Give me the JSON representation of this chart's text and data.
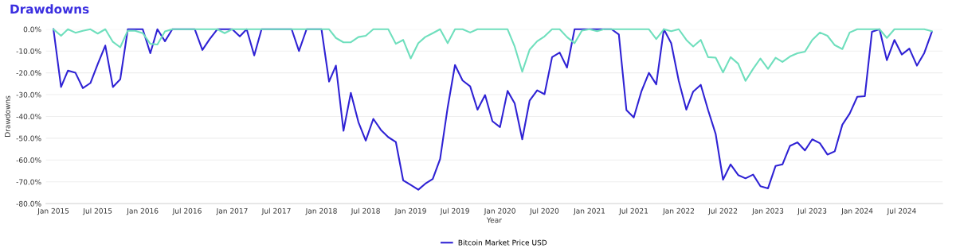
{
  "chart_data": {
    "type": "line",
    "title": "Drawdowns",
    "xlabel": "Year",
    "ylabel": "Drawdowns",
    "x": [
      "2015-01",
      "2015-02",
      "2015-03",
      "2015-04",
      "2015-05",
      "2015-06",
      "2015-07",
      "2015-08",
      "2015-09",
      "2015-10",
      "2015-11",
      "2015-12",
      "2016-01",
      "2016-02",
      "2016-03",
      "2016-04",
      "2016-05",
      "2016-06",
      "2016-07",
      "2016-08",
      "2016-09",
      "2016-10",
      "2016-11",
      "2016-12",
      "2017-01",
      "2017-02",
      "2017-03",
      "2017-04",
      "2017-05",
      "2017-06",
      "2017-07",
      "2017-08",
      "2017-09",
      "2017-10",
      "2017-11",
      "2017-12",
      "2018-01",
      "2018-02",
      "2018-03",
      "2018-04",
      "2018-05",
      "2018-06",
      "2018-07",
      "2018-08",
      "2018-09",
      "2018-10",
      "2018-11",
      "2018-12",
      "2019-01",
      "2019-02",
      "2019-03",
      "2019-04",
      "2019-05",
      "2019-06",
      "2019-07",
      "2019-08",
      "2019-09",
      "2019-10",
      "2019-11",
      "2019-12",
      "2020-01",
      "2020-02",
      "2020-03",
      "2020-04",
      "2020-05",
      "2020-06",
      "2020-07",
      "2020-08",
      "2020-09",
      "2020-10",
      "2020-11",
      "2020-12",
      "2021-01",
      "2021-02",
      "2021-03",
      "2021-04",
      "2021-05",
      "2021-06",
      "2021-07",
      "2021-08",
      "2021-09",
      "2021-10",
      "2021-11",
      "2021-12",
      "2022-01",
      "2022-02",
      "2022-03",
      "2022-04",
      "2022-05",
      "2022-06",
      "2022-07",
      "2022-08",
      "2022-09",
      "2022-10",
      "2022-11",
      "2022-12",
      "2023-01",
      "2023-02",
      "2023-03",
      "2023-04",
      "2023-05",
      "2023-06",
      "2023-07",
      "2023-08",
      "2023-09",
      "2023-10",
      "2023-11",
      "2023-12",
      "2024-01",
      "2024-02",
      "2024-03",
      "2024-04",
      "2024-05",
      "2024-06",
      "2024-07",
      "2024-08",
      "2024-09",
      "2024-10",
      "2024-11"
    ],
    "series": [
      {
        "name": "Bitcoin Market Price USD",
        "color": "#2f22d4",
        "values": [
          0,
          -26.5,
          -19,
          -20,
          -27,
          -24.7,
          -16,
          -7.5,
          -26.5,
          -23,
          0,
          0,
          0,
          -11,
          0,
          -5.5,
          0,
          0,
          0,
          0,
          -9.5,
          -4.5,
          0,
          0,
          0,
          -3.3,
          0,
          -12,
          0,
          0,
          0,
          0,
          0,
          -10,
          0,
          0,
          0,
          -24,
          -16.7,
          -46.6,
          -29.2,
          -42.6,
          -51.1,
          -41.1,
          -46.2,
          -49.5,
          -51.7,
          -69.3,
          -71.4,
          -73.6,
          -70.9,
          -68.7,
          -59.6,
          -35.9,
          -16.4,
          -23.5,
          -26.2,
          -36.9,
          -30.2,
          -42.2,
          -44.9,
          -28.3,
          -34,
          -50.5,
          -32.8,
          -28,
          -29.8,
          -12.8,
          -10.7,
          -17.6,
          0,
          0,
          0,
          0,
          0,
          0,
          -2.4,
          -37.1,
          -40.5,
          -28.6,
          -20,
          -25.3,
          0,
          -6.4,
          -23.7,
          -36.9,
          -28.6,
          -25.5,
          -37.1,
          -48.1,
          -69,
          -62,
          -66.9,
          -68.4,
          -66.7,
          -72,
          -73,
          -62.7,
          -62,
          -53.5,
          -51.9,
          -55.6,
          -50.5,
          -52.3,
          -57.5,
          -56,
          -43.8,
          -38.7,
          -31,
          -30.7,
          -1.2,
          0,
          -14.2,
          -4.9,
          -11.6,
          -8.9,
          -16.7,
          -10.9,
          -1.2
        ]
      },
      {
        "color": "#6fdfbd",
        "values": [
          0,
          -3,
          0,
          -1.6,
          -0.7,
          0,
          -2,
          0,
          -5.8,
          -8.3,
          -0.6,
          -0.7,
          -1.8,
          -6.7,
          -7,
          -1,
          0,
          0,
          0,
          0,
          0,
          0,
          0,
          -1.8,
          0,
          0,
          0,
          0,
          0,
          0,
          0,
          0,
          0,
          0,
          0,
          0,
          0,
          0,
          -4,
          -6,
          -6,
          -3.6,
          -3,
          0,
          0,
          0,
          -6.7,
          -4.9,
          -13.4,
          -6.4,
          -3.6,
          -1.8,
          0,
          -6.4,
          0,
          0,
          -1.5,
          0,
          0,
          0,
          0,
          0,
          -7.9,
          -19.5,
          -9.4,
          -5.5,
          -3.3,
          0,
          0,
          -3.6,
          -6.4,
          -0.6,
          0,
          -0.9,
          0,
          0,
          0,
          0,
          0,
          0,
          0,
          -4.5,
          0,
          -0.9,
          0,
          -4.9,
          -7.9,
          -4.9,
          -12.8,
          -13,
          -19.8,
          -12.8,
          -15.8,
          -23.7,
          -18.2,
          -13.4,
          -18.2,
          -13.1,
          -15,
          -12.5,
          -11,
          -10.3,
          -4.9,
          -1.5,
          -3,
          -7.3,
          -9.1,
          -1.5,
          0,
          0,
          0,
          0,
          -4,
          0,
          0,
          0,
          0,
          0,
          -0.9
        ]
      }
    ],
    "xlim": [
      "2014-12-01",
      "2024-12-15"
    ],
    "xticks": [
      {
        "value": "2015-01",
        "label": "Jan 2015"
      },
      {
        "value": "2015-07",
        "label": "Jul 2015"
      },
      {
        "value": "2016-01",
        "label": "Jan 2016"
      },
      {
        "value": "2016-07",
        "label": "Jul 2016"
      },
      {
        "value": "2017-01",
        "label": "Jan 2017"
      },
      {
        "value": "2017-07",
        "label": "Jul 2017"
      },
      {
        "value": "2018-01",
        "label": "Jan 2018"
      },
      {
        "value": "2018-07",
        "label": "Jul 2018"
      },
      {
        "value": "2019-01",
        "label": "Jan 2019"
      },
      {
        "value": "2019-07",
        "label": "Jul 2019"
      },
      {
        "value": "2020-01",
        "label": "Jan 2020"
      },
      {
        "value": "2020-07",
        "label": "Jul 2020"
      },
      {
        "value": "2021-01",
        "label": "Jan 2021"
      },
      {
        "value": "2021-07",
        "label": "Jul 2021"
      },
      {
        "value": "2022-01",
        "label": "Jan 2022"
      },
      {
        "value": "2022-07",
        "label": "Jul 2022"
      },
      {
        "value": "2023-01",
        "label": "Jan 2023"
      },
      {
        "value": "2023-07",
        "label": "Jul 2023"
      },
      {
        "value": "2024-01",
        "label": "Jan 2024"
      },
      {
        "value": "2024-07",
        "label": "Jul 2024"
      }
    ],
    "ylim": [
      -80,
      0
    ],
    "yticks": [
      {
        "value": -80,
        "label": "-80.0%"
      },
      {
        "value": -70,
        "label": "-70.0%"
      },
      {
        "value": -60,
        "label": "-60.0%"
      },
      {
        "value": -50,
        "label": "-50.0%"
      },
      {
        "value": -40,
        "label": "-40.0%"
      },
      {
        "value": -30,
        "label": "-30.0%"
      },
      {
        "value": -20,
        "label": "-20.0%"
      },
      {
        "value": -10,
        "label": "-10.0%"
      },
      {
        "value": 0,
        "label": "0.0%"
      }
    ],
    "grid": "y",
    "legend": "bottom",
    "marker": "none",
    "line_style": "solid"
  }
}
